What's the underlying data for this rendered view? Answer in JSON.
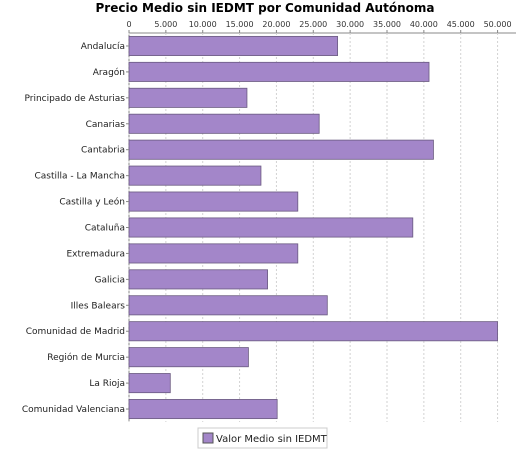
{
  "chart_data": {
    "type": "bar",
    "orientation": "horizontal",
    "title": "Precio Medio sin IEDMT por Comunidad Autónoma",
    "xlabel": "",
    "ylabel": "",
    "xlim": [
      0,
      52500
    ],
    "x_ticks": [
      0,
      5000,
      10000,
      15000,
      20000,
      25000,
      30000,
      35000,
      40000,
      45000,
      50000
    ],
    "x_tick_labels": [
      "0",
      "5.000",
      "10.000",
      "15.000",
      "20.000",
      "25.000",
      "30.000",
      "35.000",
      "40.000",
      "45.000",
      "50.000"
    ],
    "grid": "vertical dashed",
    "legend_position": "bottom-center",
    "categories": [
      "Andalucía",
      "Aragón",
      "Principado de Asturias",
      "Canarias",
      "Cantabria",
      "Castilla - La Mancha",
      "Castilla y León",
      "Cataluña",
      "Extremadura",
      "Galicia",
      "Illes Balears",
      "Comunidad de Madrid",
      "Región de Murcia",
      "La Rioja",
      "Comunidad Valenciana"
    ],
    "series": [
      {
        "name": "Valor Medio sin IEDMT",
        "color": "#a386c9",
        "values": [
          28300,
          40700,
          16000,
          25800,
          41300,
          17900,
          22900,
          38500,
          22900,
          18800,
          26900,
          50000,
          16200,
          5600,
          20100
        ]
      }
    ]
  }
}
